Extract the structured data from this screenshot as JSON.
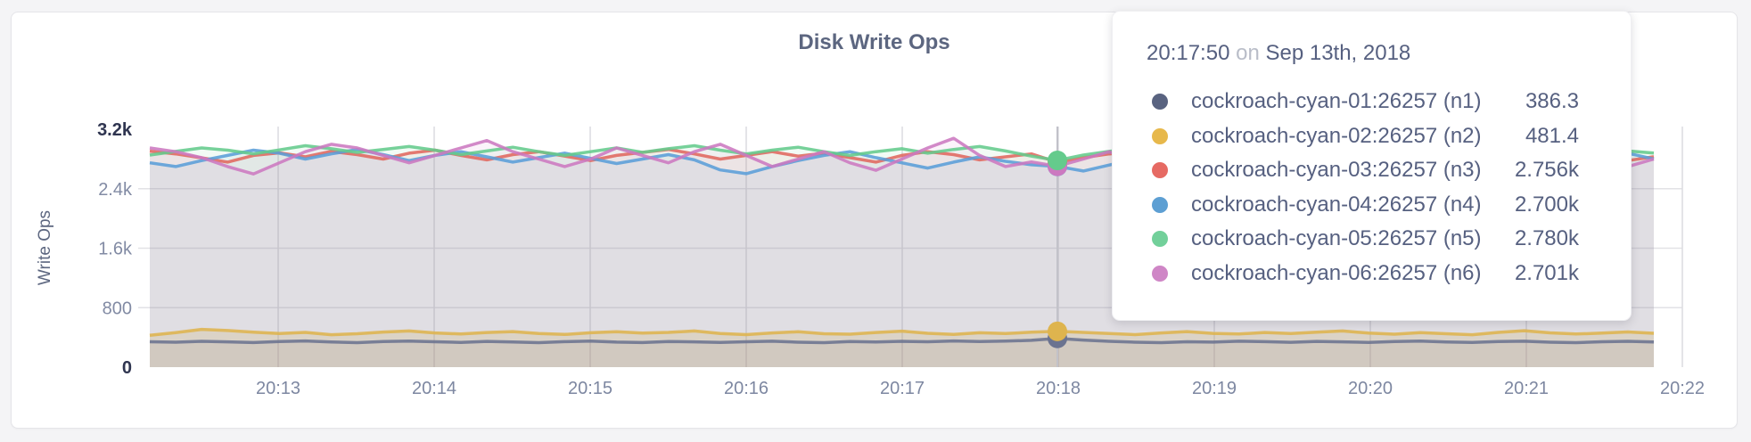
{
  "card": {
    "title": "Disk Write Ops"
  },
  "tooltip": {
    "time": "20:17:50",
    "on_word": "on",
    "date": "Sep 13th, 2018",
    "rows": [
      {
        "name": "cockroach-cyan-01:26257 (n1)",
        "value": "386.3",
        "color": "#596380"
      },
      {
        "name": "cockroach-cyan-02:26257 (n2)",
        "value": "481.4",
        "color": "#e7b84b"
      },
      {
        "name": "cockroach-cyan-03:26257 (n3)",
        "value": "2.756k",
        "color": "#e66a63"
      },
      {
        "name": "cockroach-cyan-04:26257 (n4)",
        "value": "2.700k",
        "color": "#5d9fd3"
      },
      {
        "name": "cockroach-cyan-05:26257 (n5)",
        "value": "2.780k",
        "color": "#72d09a"
      },
      {
        "name": "cockroach-cyan-06:26257 (n6)",
        "value": "2.701k",
        "color": "#cf86c6"
      }
    ]
  },
  "chart_data": {
    "type": "line",
    "title": "Disk Write Ops",
    "ylabel": "Write Ops",
    "xlabel": "",
    "ylim": [
      0,
      3200
    ],
    "grid": true,
    "legend_position": "tooltip-overlay",
    "y_ticks": [
      {
        "label": "3.2k",
        "value": 3200
      },
      {
        "label": "2.4k",
        "value": 2400
      },
      {
        "label": "1.6k",
        "value": 1600
      },
      {
        "label": "800",
        "value": 800
      },
      {
        "label": "0",
        "value": 0
      }
    ],
    "x_ticks": [
      "20:13",
      "20:14",
      "20:15",
      "20:16",
      "20:17",
      "20:18",
      "20:19",
      "20:20",
      "20:21",
      "20:22"
    ],
    "x_start": "20:12:10",
    "x_step_seconds": 10,
    "hover": {
      "index": 35,
      "time": "20:17:50"
    },
    "series": [
      {
        "name": "cockroach-cyan-01:26257 (n1)",
        "color": "#6b7390",
        "fill_opacity": 0.13,
        "values": [
          342,
          336,
          348,
          340,
          331,
          344,
          352,
          338,
          330,
          345,
          350,
          341,
          333,
          346,
          339,
          330,
          343,
          351,
          337,
          331,
          345,
          340,
          333,
          342,
          349,
          336,
          330,
          344,
          338,
          347,
          341,
          352,
          344,
          350,
          361,
          386.3,
          364,
          348,
          336,
          330,
          342,
          337,
          349,
          343,
          334,
          346,
          340,
          332,
          345,
          351,
          338,
          332,
          344,
          349,
          336,
          330,
          341,
          347,
          338
        ]
      },
      {
        "name": "cockroach-cyan-02:26257 (n2)",
        "color": "#deb44e",
        "fill_opacity": 0.22,
        "values": [
          428,
          465,
          508,
          492,
          470,
          452,
          468,
          436,
          450,
          472,
          486,
          460,
          446,
          466,
          478,
          453,
          440,
          463,
          476,
          458,
          468,
          486,
          453,
          438,
          460,
          476,
          450,
          443,
          466,
          484,
          456,
          440,
          463,
          452,
          470,
          481.4,
          468,
          452,
          438,
          460,
          478,
          454,
          446,
          466,
          453,
          470,
          486,
          458,
          443,
          464,
          450,
          436,
          468,
          490,
          462,
          446,
          458,
          473,
          455
        ]
      },
      {
        "name": "cockroach-cyan-03:26257 (n3)",
        "color": "#e0685f",
        "fill_opacity": 0.085,
        "values": [
          2905,
          2868,
          2815,
          2758,
          2848,
          2882,
          2828,
          2902,
          2858,
          2798,
          2878,
          2918,
          2848,
          2788,
          2858,
          2898,
          2838,
          2778,
          2848,
          2888,
          2928,
          2868,
          2798,
          2848,
          2898,
          2838,
          2878,
          2818,
          2758,
          2848,
          2898,
          2858,
          2788,
          2828,
          2868,
          2756,
          2818,
          2868,
          2898,
          2838,
          2778,
          2848,
          2888,
          2828,
          2768,
          2838,
          2878,
          2918,
          2848,
          2788,
          2858,
          2898,
          2838,
          2798,
          2868,
          2908,
          2848,
          2778,
          2830
        ]
      },
      {
        "name": "cockroach-cyan-04:26257 (n4)",
        "color": "#5a9ed8",
        "fill_opacity": 0.085,
        "values": [
          2748,
          2698,
          2778,
          2848,
          2918,
          2878,
          2798,
          2868,
          2928,
          2858,
          2778,
          2848,
          2898,
          2828,
          2758,
          2818,
          2878,
          2808,
          2738,
          2798,
          2858,
          2788,
          2652,
          2602,
          2698,
          2778,
          2848,
          2898,
          2818,
          2748,
          2678,
          2758,
          2828,
          2768,
          2722,
          2700,
          2638,
          2718,
          2798,
          2858,
          2788,
          2698,
          2758,
          2828,
          2878,
          2808,
          2738,
          2798,
          2868,
          2928,
          2848,
          2778,
          2838,
          2898,
          2828,
          2758,
          2818,
          2878,
          2800
        ]
      },
      {
        "name": "cockroach-cyan-05:26257 (n5)",
        "color": "#64cb8c",
        "fill_opacity": 0.085,
        "values": [
          2852,
          2902,
          2948,
          2918,
          2868,
          2922,
          2978,
          2938,
          2888,
          2928,
          2968,
          2918,
          2858,
          2908,
          2958,
          2898,
          2848,
          2898,
          2948,
          2888,
          2938,
          2978,
          2918,
          2868,
          2918,
          2958,
          2898,
          2848,
          2898,
          2938,
          2878,
          2928,
          2968,
          2908,
          2838,
          2780,
          2852,
          2902,
          2948,
          2888,
          2828,
          2888,
          2938,
          2878,
          2928,
          2968,
          2908,
          2858,
          2898,
          2948,
          2888,
          2838,
          2888,
          2938,
          2988,
          2918,
          2858,
          2908,
          2880
        ]
      },
      {
        "name": "cockroach-cyan-06:26257 (n6)",
        "color": "#cc79c0",
        "fill_opacity": 0.085,
        "values": [
          2948,
          2898,
          2818,
          2698,
          2598,
          2748,
          2898,
          2998,
          2948,
          2848,
          2748,
          2848,
          2948,
          3048,
          2898,
          2798,
          2698,
          2798,
          2948,
          2848,
          2748,
          2898,
          2998,
          2848,
          2698,
          2798,
          2898,
          2748,
          2648,
          2798,
          2948,
          3078,
          2848,
          2698,
          2760,
          2701,
          2798,
          2898,
          2748,
          2648,
          2748,
          2898,
          2998,
          2848,
          2748,
          2848,
          2948,
          2798,
          2698,
          2798,
          2948,
          3048,
          2898,
          2748,
          2848,
          2948,
          2798,
          2698,
          2800
        ]
      }
    ]
  }
}
